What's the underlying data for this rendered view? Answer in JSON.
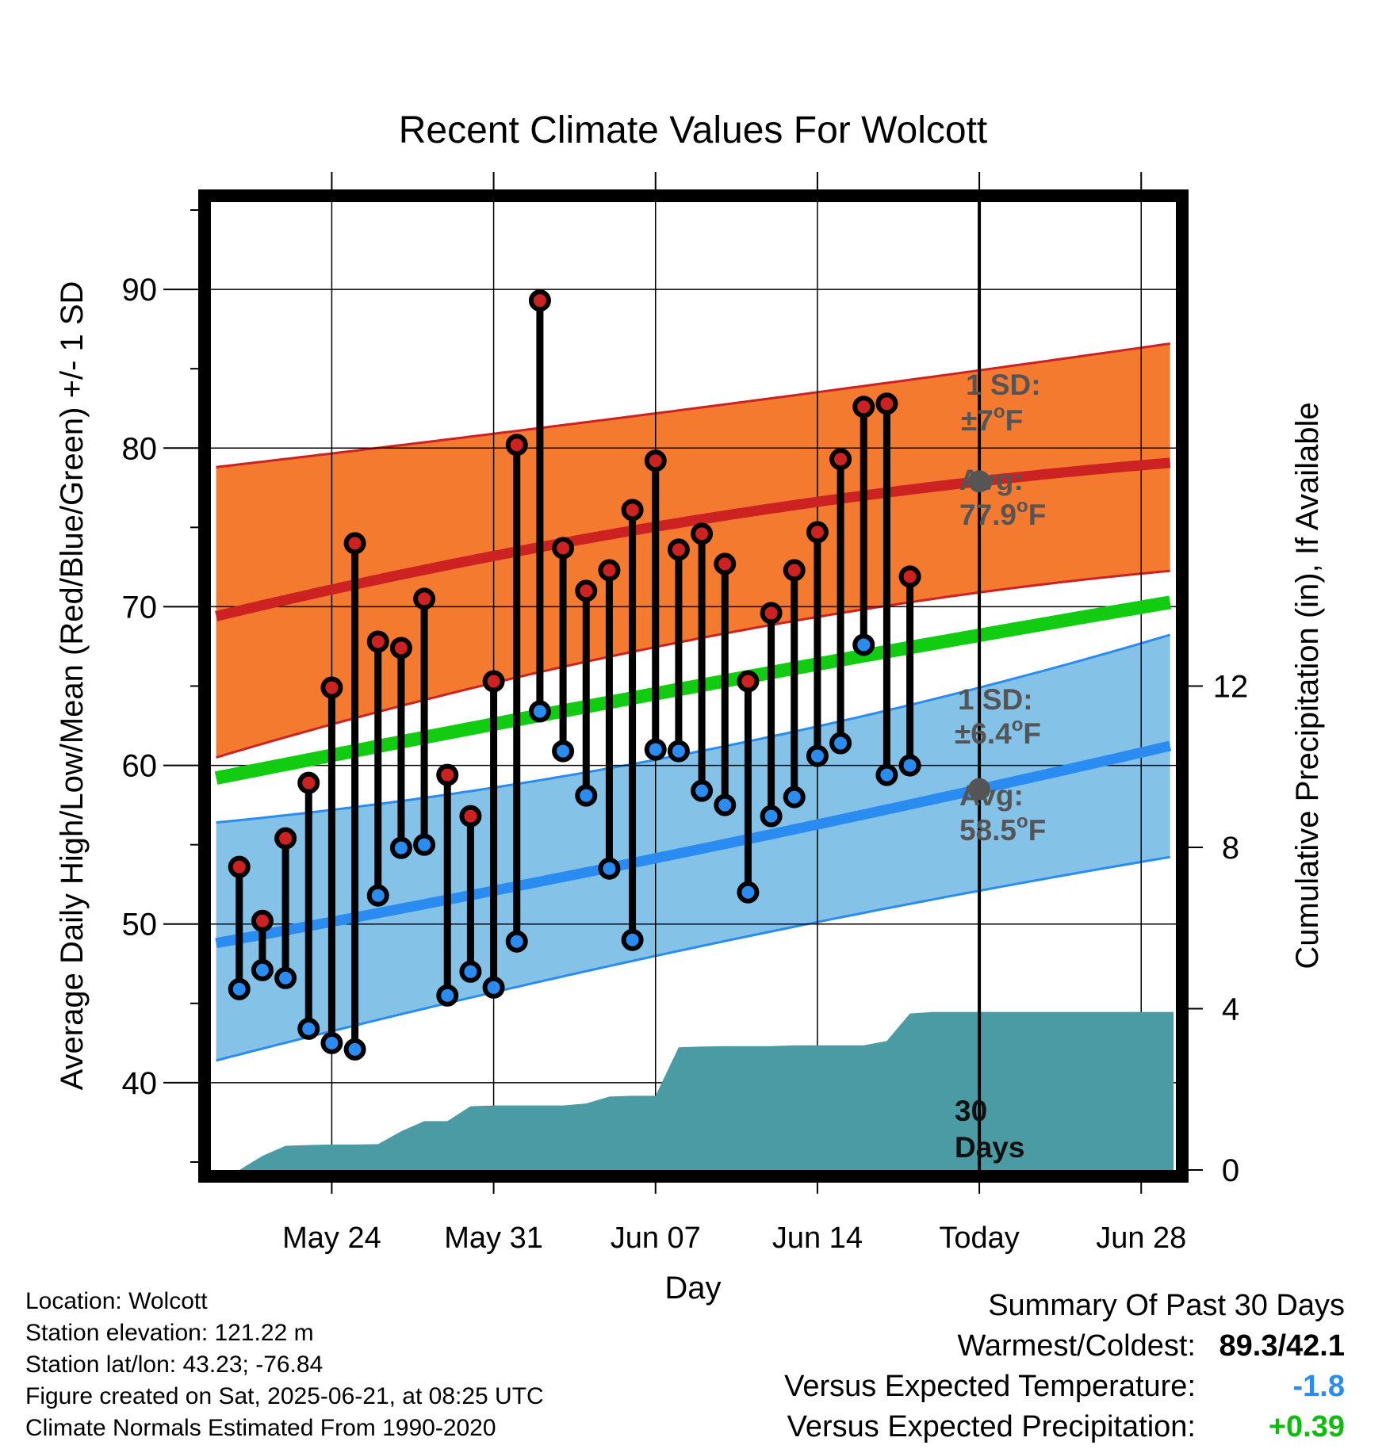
{
  "chart_data": {
    "type": "line",
    "title": "Recent Climate Values For Wolcott",
    "xlabel": "Day",
    "ylabel": "Average Daily High/Low/Mean (Red/Blue/Green) +/- 1 SD",
    "y2label": "Cumulative Precipitation (in), If Available",
    "ylim": [
      34.5,
      95.5
    ],
    "y2lim": [
      0,
      24
    ],
    "x_range_days": [
      -33.5,
      8.5
    ],
    "x_ticks": [
      {
        "day": -28,
        "label": "May 24"
      },
      {
        "day": -21,
        "label": "May 31"
      },
      {
        "day": -14,
        "label": "Jun 07"
      },
      {
        "day": -7,
        "label": "Jun 14"
      },
      {
        "day": 0,
        "label": "Today"
      },
      {
        "day": 7,
        "label": "Jun 28"
      }
    ],
    "y_ticks": [
      40,
      50,
      60,
      70,
      80,
      90
    ],
    "y2_ticks": [
      0,
      4,
      8,
      12
    ],
    "grid": true,
    "colors": {
      "high": "#cc2222",
      "low": "#2a8cf0",
      "mean": "#11cc11",
      "high_band": "#f47a30",
      "low_band": "#85c2e8",
      "precip": "#4a9ba3",
      "normal_marker": "#555555",
      "annotation": "#555555"
    },
    "normal_high": {
      "x": [
        -33,
        -21,
        0,
        8.4
      ],
      "avg": [
        69.4,
        73.2,
        77.9,
        79.9
      ],
      "upper": [
        78.8,
        80.9,
        84.9,
        86.4
      ],
      "lower": [
        60.5,
        65.2,
        70.9,
        73.3
      ]
    },
    "normal_low": {
      "x": [
        -33,
        -21,
        0,
        8.4
      ],
      "avg": [
        48.8,
        52.1,
        58.5,
        60.6
      ],
      "upper": [
        56.4,
        58.6,
        64.9,
        66.8
      ],
      "lower": [
        41.4,
        45.7,
        52.1,
        54.4
      ]
    },
    "normal_mean": {
      "x": [
        -33,
        -21,
        0,
        8.4
      ],
      "avg": [
        59.2,
        62.6,
        68.2,
        70.2
      ]
    },
    "daily": {
      "day": [
        -32,
        -31,
        -30,
        -29,
        -28,
        -27,
        -26,
        -25,
        -24,
        -23,
        -22,
        -21,
        -20,
        -19,
        -18,
        -17,
        -16,
        -15,
        -14,
        -13,
        -12,
        -11,
        -10,
        -9,
        -8,
        -7,
        -6,
        -5,
        -4,
        -3,
        -2,
        -1
      ],
      "high": [
        53.6,
        50.2,
        55.4,
        58.9,
        64.9,
        74.0,
        67.8,
        67.4,
        70.5,
        59.4,
        56.8,
        65.3,
        80.2,
        89.3,
        73.7,
        71.0,
        72.3,
        76.1,
        79.2,
        73.6,
        74.6,
        72.7,
        65.3,
        69.6,
        72.3,
        74.7,
        79.3,
        82.6,
        82.8,
        71.9,
        null,
        null
      ],
      "low": [
        45.9,
        47.1,
        46.6,
        43.4,
        42.5,
        42.1,
        51.8,
        54.8,
        55.0,
        45.5,
        47.0,
        46.0,
        48.9,
        63.4,
        60.9,
        58.1,
        53.5,
        49.0,
        61.0,
        60.9,
        58.4,
        57.5,
        52.0,
        56.8,
        58.0,
        60.6,
        61.4,
        67.6,
        59.4,
        60.0,
        null,
        null
      ]
    },
    "precip": {
      "day": [
        -33,
        -32,
        -31,
        -30,
        -29,
        -28,
        -27,
        -26,
        -25,
        -24,
        -23,
        -22,
        -21,
        -20,
        -19,
        -18,
        -17,
        -16,
        -15,
        -14,
        -13,
        -12,
        -11,
        -10,
        -9,
        -8,
        -7,
        -6,
        -5,
        -4,
        -3,
        -2,
        -1,
        0,
        8.4
      ],
      "inches": [
        0,
        0,
        0.35,
        0.6,
        0.62,
        0.63,
        0.63,
        0.64,
        0.96,
        1.21,
        1.21,
        1.58,
        1.6,
        1.6,
        1.6,
        1.6,
        1.65,
        1.82,
        1.84,
        1.84,
        3.04,
        3.06,
        3.07,
        3.07,
        3.07,
        3.09,
        3.09,
        3.09,
        3.09,
        3.2,
        3.88,
        3.92,
        3.92,
        3.92,
        3.92
      ]
    },
    "annotations": {
      "high_sd_label": "1 SD:",
      "high_sd_value": "±7",
      "high_avg_label": "Avg:",
      "high_avg_value": "77.9",
      "low_sd_label": "1 SD:",
      "low_sd_value": "±6.4",
      "low_avg_label": "Avg:",
      "low_avg_value": "58.5",
      "degree_unit": "F",
      "degree_symbol": "o",
      "days_number": "30",
      "days_word": "Days"
    }
  },
  "footer": {
    "location": "Location: Wolcott",
    "elevation": "Station elevation: 121.22 m",
    "latlon": "Station lat/lon: 43.23; -76.84",
    "created": "Figure created on Sat, 2025-06-21, at 08:25 UTC",
    "normals": "Climate Normals Estimated From 1990-2020"
  },
  "summary": {
    "title": "Summary Of Past 30 Days",
    "warm_cold_label": "Warmest/Coldest:",
    "warm_cold_value": "89.3/42.1",
    "temp_label": "Versus Expected Temperature:",
    "temp_value": "-1.8",
    "temp_color": "#2a8cf0",
    "precip_label": "Versus Expected Precipitation:",
    "precip_value": "+0.39",
    "precip_color": "#11bb11"
  }
}
